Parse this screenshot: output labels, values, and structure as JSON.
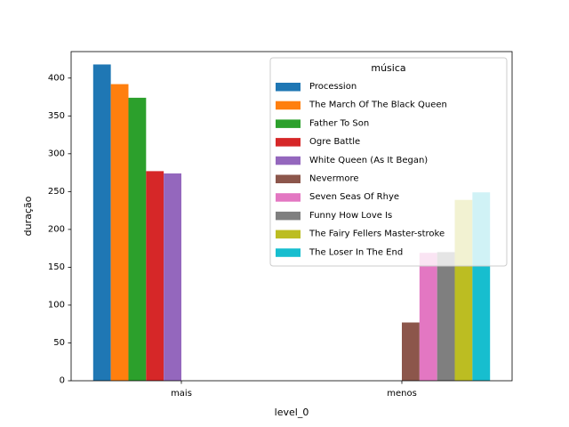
{
  "chart_data": {
    "type": "bar",
    "xlabel": "level_0",
    "ylabel": "duração",
    "categories": [
      "mais",
      "menos"
    ],
    "ylim": [
      0,
      435
    ],
    "yticks": [
      0,
      50,
      100,
      150,
      200,
      250,
      300,
      350,
      400
    ],
    "grid": false,
    "legend": {
      "title": "música",
      "placement": "top-right",
      "framed": true
    },
    "series": [
      {
        "name": "Procession",
        "color": "#1f77b4",
        "values": [
          418,
          null
        ]
      },
      {
        "name": "The March Of The Black Queen",
        "color": "#ff7f0e",
        "values": [
          392,
          null
        ]
      },
      {
        "name": "Father To Son",
        "color": "#2ca02c",
        "values": [
          374,
          null
        ]
      },
      {
        "name": "Ogre Battle",
        "color": "#d62728",
        "values": [
          277,
          null
        ]
      },
      {
        "name": "White Queen (As It Began)",
        "color": "#9467bd",
        "values": [
          274,
          null
        ]
      },
      {
        "name": "Nevermore",
        "color": "#8c564b",
        "values": [
          null,
          77
        ]
      },
      {
        "name": "Seven Seas Of Rhye",
        "color": "#e377c2",
        "values": [
          null,
          169
        ]
      },
      {
        "name": "Funny How Love Is",
        "color": "#7f7f7f",
        "values": [
          null,
          170
        ]
      },
      {
        "name": "The Fairy Fellers Master-stroke",
        "color": "#bcbd22",
        "values": [
          null,
          239
        ]
      },
      {
        "name": "The Loser In The End",
        "color": "#17becf",
        "values": [
          null,
          249
        ]
      }
    ]
  }
}
